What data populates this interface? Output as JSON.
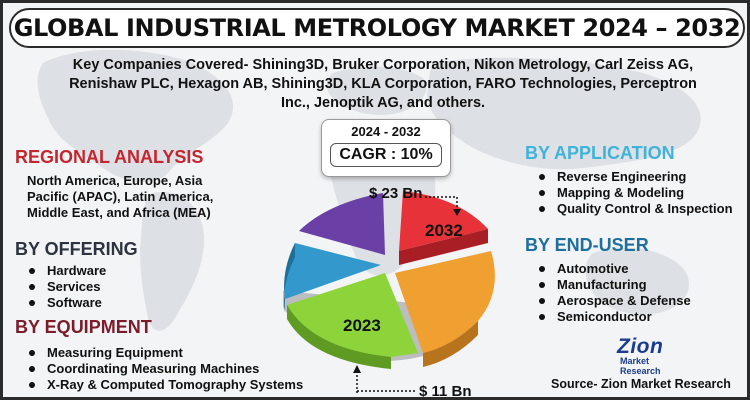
{
  "title": "GLOBAL INDUSTRIAL METROLOGY MARKET 2024 – 2032",
  "companies": "Key Companies Covered- Shining3D, Bruker Corporation, Nikon Metrology, Carl Zeiss AG, Renishaw PLC, Hexagon AB, Shining3D, KLA Corporation, FARO Technologies, Perceptron Inc., Jenoptik AG, and others.",
  "cagr": {
    "years": "2024 - 2032",
    "value": "CAGR : 10%"
  },
  "regional": {
    "heading": "REGIONAL ANALYSIS",
    "text": "North America, Europe, Asia Pacific (APAC), Latin America, Middle East, and Africa (MEA)"
  },
  "offering": {
    "heading": "BY OFFERING",
    "items": [
      "Hardware",
      "Services",
      "Software"
    ]
  },
  "equipment": {
    "heading": "BY EQUIPMENT",
    "items": [
      "Measuring Equipment",
      "Coordinating Measuring Machines",
      "X-Ray & Computed Tomography Systems"
    ]
  },
  "application": {
    "heading": "BY APPLICATION",
    "items": [
      "Reverse Engineering",
      "Mapping & Modeling",
      "Quality Control & Inspection"
    ]
  },
  "end_user": {
    "heading": "BY END-USER",
    "items": [
      "Automotive",
      "Manufacturing",
      "Aerospace & Defense",
      "Semiconductor"
    ]
  },
  "pie": {
    "label_2032": "2032",
    "label_2023": "2023",
    "value_2032": "$ 23 Bn",
    "value_2023": "$ 11 Bn",
    "colors": [
      "#e8323a",
      "#f0a030",
      "#8cd43a",
      "#3399cc",
      "#6a3fa6"
    ]
  },
  "logo": {
    "main": "Zion",
    "sub": "Market Research"
  },
  "source": "Source- Zion Market Research"
}
